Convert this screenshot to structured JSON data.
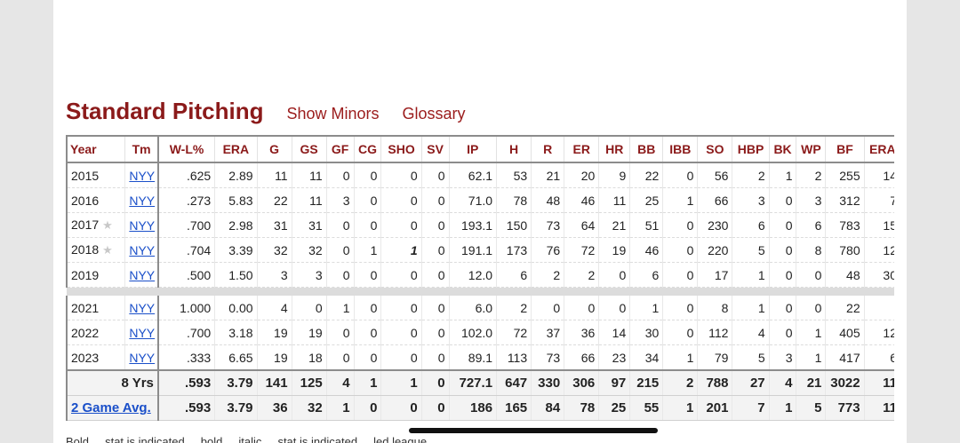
{
  "section": {
    "title": "Standard Pitching",
    "links": [
      "Show Minors",
      "Glossary"
    ]
  },
  "table": {
    "columns": [
      "Year",
      "Tm",
      "W-L%",
      "ERA",
      "G",
      "GS",
      "GF",
      "CG",
      "SHO",
      "SV",
      "IP",
      "H",
      "R",
      "ER",
      "HR",
      "BB",
      "IBB",
      "SO",
      "HBP",
      "BK",
      "WP",
      "BF",
      "ERA"
    ],
    "rows": [
      {
        "year": "2015",
        "star": false,
        "tm": "NYY",
        "vals": [
          ".625",
          "2.89",
          "11",
          "11",
          "0",
          "0",
          "0",
          "0",
          "62.1",
          "53",
          "21",
          "20",
          "9",
          "22",
          "0",
          "56",
          "2",
          "1",
          "2",
          "255",
          "14"
        ]
      },
      {
        "year": "2016",
        "star": false,
        "tm": "NYY",
        "vals": [
          ".273",
          "5.83",
          "22",
          "11",
          "3",
          "0",
          "0",
          "0",
          "71.0",
          "78",
          "48",
          "46",
          "11",
          "25",
          "1",
          "66",
          "3",
          "0",
          "3",
          "312",
          "7"
        ]
      },
      {
        "year": "2017",
        "star": true,
        "tm": "NYY",
        "vals": [
          ".700",
          "2.98",
          "31",
          "31",
          "0",
          "0",
          "0",
          "0",
          "193.1",
          "150",
          "73",
          "64",
          "21",
          "51",
          "0",
          "230",
          "6",
          "0",
          "6",
          "783",
          "15"
        ]
      },
      {
        "year": "2018",
        "star": true,
        "tm": "NYY",
        "vals": [
          ".704",
          "3.39",
          "32",
          "32",
          "0",
          "1",
          "1",
          "0",
          "191.1",
          "173",
          "76",
          "72",
          "19",
          "46",
          "0",
          "220",
          "5",
          "0",
          "8",
          "780",
          "12"
        ]
      },
      {
        "year": "2019",
        "star": false,
        "tm": "NYY",
        "vals": [
          ".500",
          "1.50",
          "3",
          "3",
          "0",
          "0",
          "0",
          "0",
          "12.0",
          "6",
          "2",
          "2",
          "0",
          "6",
          "0",
          "17",
          "1",
          "0",
          "0",
          "48",
          "30"
        ]
      },
      {
        "gap": true
      },
      {
        "year": "2021",
        "star": false,
        "tm": "NYY",
        "vals": [
          "1.000",
          "0.00",
          "4",
          "0",
          "1",
          "0",
          "0",
          "0",
          "6.0",
          "2",
          "0",
          "0",
          "0",
          "1",
          "0",
          "8",
          "1",
          "0",
          "0",
          "22",
          ""
        ]
      },
      {
        "year": "2022",
        "star": false,
        "tm": "NYY",
        "vals": [
          ".700",
          "3.18",
          "19",
          "19",
          "0",
          "0",
          "0",
          "0",
          "102.0",
          "72",
          "37",
          "36",
          "14",
          "30",
          "0",
          "112",
          "4",
          "0",
          "1",
          "405",
          "12"
        ]
      },
      {
        "year": "2023",
        "star": false,
        "tm": "NYY",
        "vals": [
          ".333",
          "6.65",
          "19",
          "18",
          "0",
          "0",
          "0",
          "0",
          "89.1",
          "113",
          "73",
          "66",
          "23",
          "34",
          "1",
          "79",
          "5",
          "3",
          "1",
          "417",
          "6"
        ]
      }
    ],
    "summary": [
      {
        "label": "8 Yrs",
        "link": false,
        "vals": [
          ".593",
          "3.79",
          "141",
          "125",
          "4",
          "1",
          "1",
          "0",
          "727.1",
          "647",
          "330",
          "306",
          "97",
          "215",
          "2",
          "788",
          "27",
          "4",
          "21",
          "3022",
          "11"
        ]
      },
      {
        "label": "2 Game Avg.",
        "link": true,
        "vals": [
          ".593",
          "3.79",
          "36",
          "32",
          "1",
          "0",
          "0",
          "0",
          "186",
          "165",
          "84",
          "78",
          "25",
          "55",
          "1",
          "201",
          "7",
          "1",
          "5",
          "773",
          "11"
        ]
      }
    ]
  },
  "footnote": "Bold ... stat is indicated ... bold ... italic ... stat is indicated ... led league"
}
